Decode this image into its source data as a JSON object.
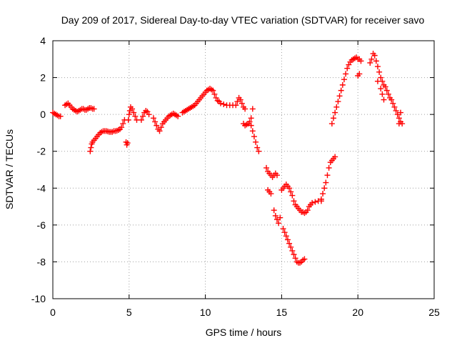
{
  "chart_data": {
    "type": "scatter",
    "title": "Day 209 of 2017, Sidereal Day-to-day VTEC variation (SDTVAR) for receiver savo",
    "xlabel": "GPS time / hours",
    "ylabel": "SDTVAR / TECUs",
    "xlim": [
      0,
      25
    ],
    "ylim": [
      -10,
      4
    ],
    "xticks": [
      0,
      5,
      10,
      15,
      20,
      25
    ],
    "yticks": [
      -10,
      -8,
      -6,
      -4,
      -2,
      0,
      2,
      4
    ],
    "xtick_labels": [
      "0",
      "5",
      "10",
      "15",
      "20",
      "25"
    ],
    "ytick_labels": [
      "-10",
      "-8",
      "-6",
      "-4",
      "-2",
      "0",
      "2",
      "4"
    ],
    "grid": true,
    "marker": "+",
    "series": [
      {
        "name": "SDTVAR",
        "color": "#ff0000",
        "x": [
          0.0,
          0.1,
          0.2,
          0.3,
          0.4,
          0.5,
          0.8,
          0.9,
          1.0,
          1.1,
          1.2,
          1.3,
          1.4,
          1.5,
          1.6,
          1.7,
          1.8,
          1.9,
          2.0,
          2.1,
          2.2,
          2.3,
          2.4,
          2.5,
          2.6,
          2.7,
          2.45,
          2.5,
          2.55,
          2.6,
          2.7,
          2.8,
          2.9,
          3.0,
          3.1,
          3.2,
          3.3,
          3.4,
          3.5,
          3.6,
          3.7,
          3.8,
          3.9,
          4.0,
          4.1,
          4.2,
          4.3,
          4.4,
          4.5,
          4.6,
          4.7,
          4.8,
          4.85,
          4.9,
          4.95,
          5.0,
          5.05,
          5.1,
          5.2,
          5.3,
          5.4,
          5.5,
          5.8,
          5.9,
          6.0,
          6.1,
          6.2,
          6.3,
          6.6,
          6.7,
          6.8,
          6.9,
          7.0,
          7.1,
          7.2,
          7.3,
          7.4,
          7.5,
          7.6,
          7.7,
          7.8,
          7.9,
          8.0,
          8.1,
          8.2,
          8.5,
          8.6,
          8.7,
          8.8,
          8.9,
          9.0,
          9.1,
          9.2,
          9.3,
          9.4,
          9.5,
          9.6,
          9.7,
          9.8,
          9.9,
          10.0,
          10.1,
          10.2,
          10.3,
          10.4,
          10.5,
          10.6,
          10.7,
          10.8,
          10.9,
          11.0,
          11.2,
          11.4,
          11.6,
          11.8,
          12.0,
          12.1,
          12.2,
          12.3,
          12.4,
          12.5,
          12.6,
          12.5,
          12.6,
          12.7,
          12.8,
          12.9,
          13.0,
          13.1,
          13.2,
          13.3,
          13.4,
          13.5,
          13.0,
          13.1,
          14.0,
          14.1,
          14.2,
          14.3,
          14.4,
          14.5,
          14.6,
          14.7,
          14.1,
          14.2,
          14.3,
          14.5,
          14.6,
          14.7,
          14.8,
          14.9,
          15.0,
          15.1,
          15.2,
          15.3,
          15.4,
          15.5,
          15.6,
          15.7,
          15.8,
          15.9,
          16.0,
          16.1,
          16.2,
          16.3,
          16.4,
          16.5,
          16.6,
          16.7,
          16.8,
          16.9,
          17.0,
          17.2,
          17.4,
          17.6,
          15.1,
          15.2,
          15.3,
          15.4,
          15.5,
          15.6,
          15.7,
          15.8,
          15.9,
          16.0,
          16.1,
          16.2,
          16.3,
          16.4,
          16.5,
          17.6,
          17.7,
          17.8,
          17.9,
          18.0,
          18.1,
          18.2,
          18.3,
          18.4,
          18.5,
          18.3,
          18.4,
          18.5,
          18.6,
          18.7,
          18.8,
          18.9,
          19.0,
          19.1,
          19.2,
          19.3,
          19.4,
          19.5,
          19.6,
          19.7,
          19.8,
          19.9,
          20.0,
          20.1,
          20.2,
          20.0,
          20.1,
          20.8,
          20.9,
          21.0,
          21.1,
          21.2,
          21.3,
          21.4,
          21.5,
          21.6,
          21.7,
          21.8,
          21.9,
          22.0,
          22.1,
          22.2,
          22.3,
          22.4,
          22.5,
          22.6,
          22.7,
          22.8,
          22.9,
          21.3,
          21.5,
          21.6,
          21.7,
          22.7,
          22.8
        ],
        "y": [
          0.1,
          0.05,
          0.0,
          -0.05,
          -0.1,
          -0.1,
          0.5,
          0.55,
          0.6,
          0.5,
          0.4,
          0.3,
          0.25,
          0.2,
          0.15,
          0.2,
          0.25,
          0.3,
          0.3,
          0.25,
          0.25,
          0.3,
          0.35,
          0.35,
          0.3,
          0.3,
          -2.0,
          -1.8,
          -1.6,
          -1.5,
          -1.4,
          -1.3,
          -1.2,
          -1.1,
          -1.0,
          -0.95,
          -0.9,
          -0.9,
          -0.9,
          -0.92,
          -0.95,
          -0.95,
          -0.95,
          -0.9,
          -0.9,
          -0.88,
          -0.85,
          -0.8,
          -0.7,
          -0.5,
          -0.3,
          -1.5,
          -1.65,
          -1.55,
          -0.3,
          0.0,
          0.2,
          0.4,
          0.3,
          0.1,
          -0.1,
          -0.3,
          -0.3,
          -0.1,
          0.1,
          0.2,
          0.15,
          0.0,
          -0.2,
          -0.4,
          -0.6,
          -0.8,
          -0.9,
          -0.7,
          -0.5,
          -0.4,
          -0.3,
          -0.2,
          -0.1,
          -0.05,
          0.0,
          0.05,
          0.0,
          -0.05,
          -0.1,
          0.1,
          0.15,
          0.2,
          0.25,
          0.3,
          0.35,
          0.4,
          0.45,
          0.5,
          0.6,
          0.7,
          0.8,
          0.9,
          1.0,
          1.1,
          1.2,
          1.3,
          1.35,
          1.4,
          1.35,
          1.3,
          1.1,
          0.9,
          0.75,
          0.7,
          0.6,
          0.55,
          0.5,
          0.5,
          0.5,
          0.5,
          0.7,
          0.9,
          0.8,
          0.6,
          0.4,
          0.3,
          -0.5,
          -0.6,
          -0.55,
          -0.5,
          -0.4,
          -0.6,
          -0.9,
          -1.2,
          -1.5,
          -1.8,
          -2.0,
          -0.2,
          0.3,
          -2.9,
          -3.1,
          -3.2,
          -3.3,
          -3.4,
          -3.3,
          -3.2,
          -3.3,
          -4.1,
          -4.2,
          -4.3,
          -5.2,
          -5.5,
          -5.7,
          -5.9,
          -5.6,
          -4.1,
          -4.0,
          -3.9,
          -3.8,
          -3.9,
          -4.0,
          -4.2,
          -4.4,
          -4.7,
          -4.9,
          -5.0,
          -5.1,
          -5.2,
          -5.3,
          -5.3,
          -5.35,
          -5.3,
          -5.2,
          -5.0,
          -4.9,
          -4.8,
          -4.75,
          -4.7,
          -4.7,
          -6.2,
          -6.4,
          -6.6,
          -6.8,
          -7.0,
          -7.2,
          -7.4,
          -7.6,
          -7.8,
          -8.0,
          -8.05,
          -8.05,
          -8.0,
          -7.9,
          -7.85,
          -4.6,
          -4.3,
          -4.0,
          -3.7,
          -3.3,
          -2.9,
          -2.6,
          -2.5,
          -2.4,
          -2.3,
          -0.5,
          -0.2,
          0.1,
          0.4,
          0.7,
          1.0,
          1.3,
          1.6,
          1.9,
          2.2,
          2.5,
          2.7,
          2.85,
          2.95,
          3.0,
          3.05,
          3.1,
          3.0,
          3.0,
          2.9,
          2.1,
          2.2,
          2.8,
          3.0,
          3.3,
          3.2,
          2.9,
          2.6,
          2.3,
          2.0,
          1.8,
          1.6,
          1.5,
          1.3,
          1.1,
          0.9,
          0.8,
          0.6,
          0.4,
          0.2,
          0.0,
          -0.2,
          -0.4,
          -0.5,
          1.8,
          1.4,
          1.1,
          0.8,
          -0.5,
          0.1
        ]
      }
    ]
  }
}
